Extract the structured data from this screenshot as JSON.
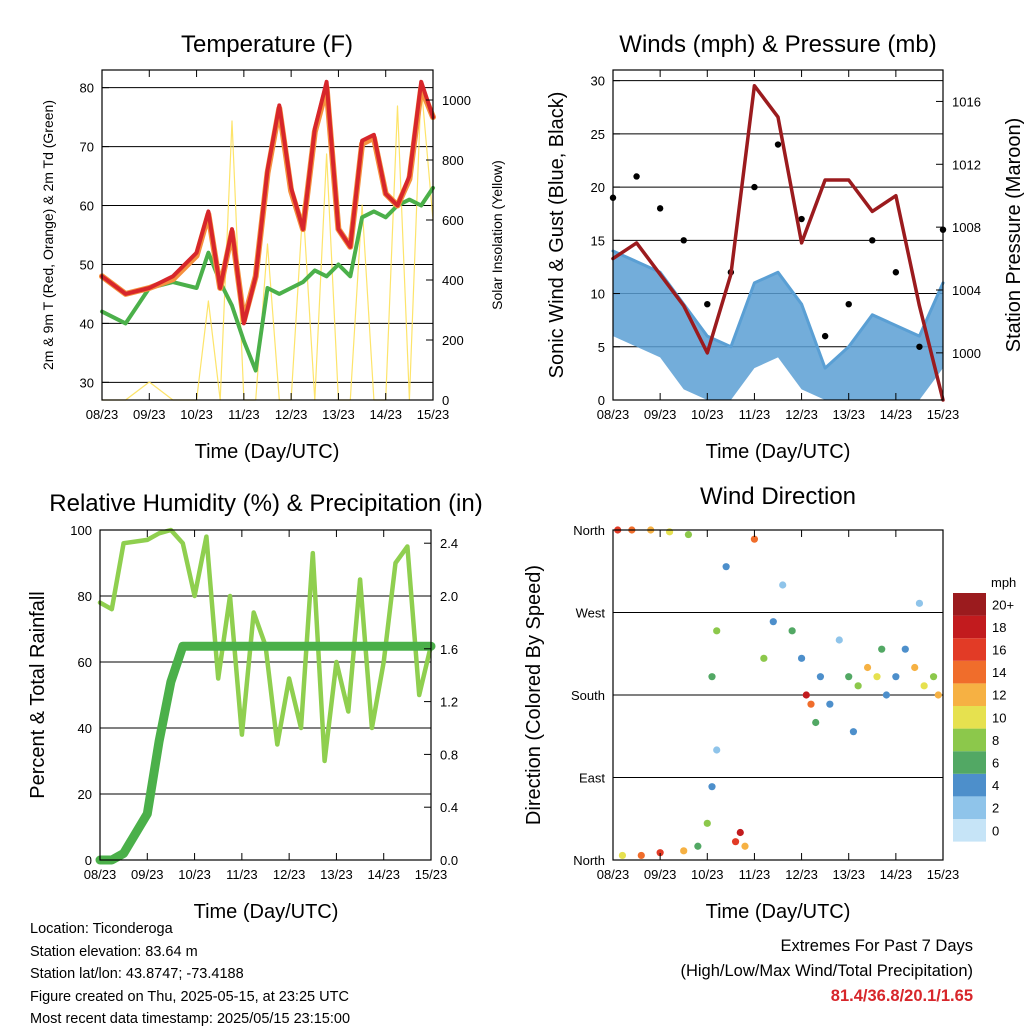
{
  "x_tick_labels": [
    "08/23",
    "09/23",
    "10/23",
    "11/23",
    "12/23",
    "13/23",
    "14/23",
    "15/23"
  ],
  "x_axis_label": "Time (Day/UTC)",
  "colors": {
    "temp_2m": "#d7262b",
    "temp_9m": "#f5913e",
    "dewpoint": "#4bb04a",
    "solar": "#fde15a",
    "wind": "#5a9fd4",
    "gust": "#000000",
    "pressure": "#9b1b1e",
    "rh": "#8fcf4f",
    "precip": "#4bb04a",
    "ext_value": "#d7262b"
  },
  "panels": {
    "temperature": {
      "title": "Temperature (F)",
      "left_label": "2m & 9m T (Red, Orange) & 2m Td (Green)",
      "right_label": "Solar Insolation (Yellow)",
      "left_ticks": [
        "30",
        "40",
        "50",
        "60",
        "70",
        "80"
      ],
      "right_ticks": [
        "0",
        "200",
        "400",
        "600",
        "800",
        "1000"
      ]
    },
    "winds": {
      "title": "Winds (mph) & Pressure (mb)",
      "left_label": "Sonic Wind & Gust (Blue, Black)",
      "right_label": "Station Pressure (Maroon)",
      "left_ticks": [
        "0",
        "5",
        "10",
        "15",
        "20",
        "25",
        "30"
      ],
      "right_ticks": [
        "1000",
        "1004",
        "1008",
        "1012",
        "1016"
      ]
    },
    "humidity": {
      "title": "Relative Humidity (%) & Precipitation (in)",
      "left_label": "Percent & Total Rainfall",
      "left_ticks": [
        "0",
        "20",
        "40",
        "60",
        "80",
        "100"
      ],
      "right_ticks": [
        "0.0",
        "0.4",
        "0.8",
        "1.2",
        "1.6",
        "2.0",
        "2.4"
      ]
    },
    "direction": {
      "title": "Wind Direction",
      "left_label": "Direction (Colored By Speed)",
      "dir_labels": [
        "North",
        "East",
        "South",
        "West",
        "North"
      ],
      "legend_unit": "mph",
      "legend_labels": [
        "0",
        "2",
        "4",
        "6",
        "8",
        "10",
        "12",
        "14",
        "16",
        "18",
        "20+"
      ],
      "legend_colors": [
        "#c6e4f7",
        "#8fc4ea",
        "#4d8fcb",
        "#52a864",
        "#8cc84b",
        "#e6e14f",
        "#f6b143",
        "#f06d2b",
        "#e23b26",
        "#c21b1e",
        "#9b1b1e"
      ]
    }
  },
  "footer": {
    "location": "Location: Ticonderoga",
    "elevation": "Station elevation: 83.64 m",
    "latlon": "Station lat/lon: 43.8747; -73.4188",
    "created": "Figure created on Thu, 2025-05-15, at 23:25 UTC",
    "recent": "Most recent data timestamp: 2025/05/15 23:15:00"
  },
  "extremes": {
    "heading": "Extremes For Past 7 Days",
    "subheading": "(High/Low/Max Wind/Total Precipitation)",
    "values": "81.4/36.8/20.1/1.65"
  },
  "chart_data": [
    {
      "type": "line",
      "title": "Temperature (F)",
      "xlabel": "Time (Day/UTC)",
      "ylabel": "2m & 9m T (Red, Orange) & 2m Td (Green)",
      "y2label": "Solar Insolation (Yellow)",
      "x": [
        8,
        8.5,
        9,
        9.5,
        10,
        10.25,
        10.5,
        10.75,
        11,
        11.25,
        11.5,
        11.75,
        12,
        12.25,
        12.5,
        12.75,
        13,
        13.25,
        13.5,
        13.75,
        14,
        14.25,
        14.5,
        14.75,
        15
      ],
      "ylim": [
        27,
        83
      ],
      "y2lim": [
        0,
        1100
      ],
      "xlim": [
        8,
        15
      ],
      "series": [
        {
          "name": "2m T",
          "axis": "left",
          "values": [
            48,
            45,
            46,
            48,
            52,
            59,
            46,
            56,
            40,
            48,
            66,
            77,
            63,
            56,
            73,
            81,
            56,
            53,
            71,
            72,
            62,
            60,
            65,
            81,
            75
          ]
        },
        {
          "name": "9m T",
          "axis": "left",
          "values": [
            48,
            45,
            46,
            47.5,
            51.5,
            58.5,
            46,
            55.5,
            40.5,
            48,
            65.5,
            76.5,
            62.5,
            56,
            72.5,
            80,
            56,
            53,
            70.5,
            71.5,
            62,
            60,
            64.5,
            80,
            75
          ]
        },
        {
          "name": "2m Td",
          "axis": "left",
          "values": [
            42,
            40,
            46,
            47,
            46,
            52,
            47,
            43,
            37,
            32,
            46,
            45,
            46,
            47,
            49,
            48,
            50,
            48,
            58,
            59,
            58,
            60,
            61,
            60,
            63
          ]
        },
        {
          "name": "Solar Insolation",
          "axis": "right",
          "values": [
            0,
            0,
            60,
            0,
            0,
            330,
            0,
            930,
            0,
            0,
            520,
            0,
            0,
            650,
            0,
            820,
            0,
            0,
            650,
            0,
            0,
            980,
            0,
            1050,
            600
          ]
        }
      ]
    },
    {
      "type": "line",
      "title": "Winds (mph) & Pressure (mb)",
      "xlabel": "Time (Day/UTC)",
      "ylabel": "Sonic Wind & Gust (Blue, Black)",
      "y2label": "Station Pressure (Maroon)",
      "x": [
        8,
        8.5,
        9,
        9.5,
        10,
        10.5,
        11,
        11.5,
        12,
        12.5,
        13,
        13.5,
        14,
        14.5,
        15
      ],
      "ylim": [
        0,
        31
      ],
      "y2lim": [
        997,
        1018
      ],
      "xlim": [
        8,
        15
      ],
      "series": [
        {
          "name": "Sonic Wind",
          "axis": "left",
          "values": [
            14,
            13,
            12,
            9,
            6,
            5,
            11,
            12,
            9,
            3,
            5,
            8,
            7,
            6,
            11
          ]
        },
        {
          "name": "Gust",
          "axis": "left",
          "values": [
            19,
            21,
            18,
            15,
            9,
            12,
            20,
            24,
            17,
            6,
            9,
            15,
            12,
            5,
            16
          ]
        },
        {
          "name": "Station Pressure",
          "axis": "right",
          "values": [
            1006,
            1007,
            1005,
            1003,
            1000,
            1005,
            1017,
            1015,
            1007,
            1011,
            1011,
            1009,
            1010,
            1003,
            997
          ]
        }
      ]
    },
    {
      "type": "line",
      "title": "Relative Humidity (%) & Precipitation (in)",
      "xlabel": "Time (Day/UTC)",
      "ylabel": "Percent & Total Rainfall",
      "x": [
        8,
        8.25,
        8.5,
        9,
        9.25,
        9.5,
        9.75,
        10,
        10.25,
        10.5,
        10.75,
        11,
        11.25,
        11.5,
        11.75,
        12,
        12.25,
        12.5,
        12.75,
        13,
        13.25,
        13.5,
        13.75,
        14,
        14.25,
        14.5,
        14.75,
        15
      ],
      "ylim": [
        0,
        100
      ],
      "y2lim": [
        0,
        2.5
      ],
      "xlim": [
        8,
        15
      ],
      "series": [
        {
          "name": "Relative Humidity",
          "axis": "left",
          "values": [
            78,
            76,
            96,
            97,
            99,
            100,
            96,
            80,
            98,
            55,
            80,
            38,
            75,
            65,
            35,
            55,
            40,
            93,
            30,
            60,
            45,
            85,
            40,
            60,
            90,
            95,
            50,
            65
          ]
        },
        {
          "name": "Total Precipitation",
          "axis": "right",
          "values": [
            0,
            0,
            0.05,
            0.35,
            0.9,
            1.35,
            1.62,
            1.62,
            1.62,
            1.62,
            1.62,
            1.62,
            1.62,
            1.62,
            1.62,
            1.62,
            1.62,
            1.62,
            1.62,
            1.62,
            1.62,
            1.62,
            1.62,
            1.62,
            1.62,
            1.62,
            1.62,
            1.62
          ]
        }
      ]
    },
    {
      "type": "scatter",
      "title": "Wind Direction",
      "xlabel": "Time (Day/UTC)",
      "ylabel": "Direction (Colored By Speed)",
      "ytick_labels": [
        "North",
        "East",
        "South",
        "West",
        "North"
      ],
      "xlim": [
        8,
        15
      ],
      "legend_title": "mph",
      "points": [
        {
          "t": 8.1,
          "dir": 360,
          "spd": 16
        },
        {
          "t": 8.4,
          "dir": 360,
          "spd": 14
        },
        {
          "t": 8.8,
          "dir": 360,
          "spd": 12
        },
        {
          "t": 9.2,
          "dir": 358,
          "spd": 10
        },
        {
          "t": 9.6,
          "dir": 355,
          "spd": 8
        },
        {
          "t": 8.2,
          "dir": 5,
          "spd": 10
        },
        {
          "t": 8.6,
          "dir": 5,
          "spd": 14
        },
        {
          "t": 9.0,
          "dir": 8,
          "spd": 16
        },
        {
          "t": 9.5,
          "dir": 10,
          "spd": 12
        },
        {
          "t": 9.8,
          "dir": 15,
          "spd": 6
        },
        {
          "t": 10.0,
          "dir": 40,
          "spd": 8
        },
        {
          "t": 10.1,
          "dir": 80,
          "spd": 4
        },
        {
          "t": 10.2,
          "dir": 120,
          "spd": 2
        },
        {
          "t": 10.1,
          "dir": 200,
          "spd": 6
        },
        {
          "t": 10.2,
          "dir": 250,
          "spd": 8
        },
        {
          "t": 10.4,
          "dir": 320,
          "spd": 4
        },
        {
          "t": 10.6,
          "dir": 20,
          "spd": 16
        },
        {
          "t": 10.7,
          "dir": 30,
          "spd": 18
        },
        {
          "t": 10.8,
          "dir": 15,
          "spd": 12
        },
        {
          "t": 11.0,
          "dir": 350,
          "spd": 14
        },
        {
          "t": 11.2,
          "dir": 220,
          "spd": 8
        },
        {
          "t": 11.4,
          "dir": 260,
          "spd": 4
        },
        {
          "t": 11.6,
          "dir": 300,
          "spd": 2
        },
        {
          "t": 11.8,
          "dir": 250,
          "spd": 6
        },
        {
          "t": 12.0,
          "dir": 220,
          "spd": 4
        },
        {
          "t": 12.1,
          "dir": 180,
          "spd": 18
        },
        {
          "t": 12.2,
          "dir": 170,
          "spd": 14
        },
        {
          "t": 12.3,
          "dir": 150,
          "spd": 6
        },
        {
          "t": 12.4,
          "dir": 200,
          "spd": 4
        },
        {
          "t": 12.6,
          "dir": 170,
          "spd": 4
        },
        {
          "t": 12.8,
          "dir": 240,
          "spd": 2
        },
        {
          "t": 13.0,
          "dir": 200,
          "spd": 6
        },
        {
          "t": 13.2,
          "dir": 190,
          "spd": 8
        },
        {
          "t": 13.4,
          "dir": 210,
          "spd": 12
        },
        {
          "t": 13.6,
          "dir": 200,
          "spd": 10
        },
        {
          "t": 13.8,
          "dir": 180,
          "spd": 4
        },
        {
          "t": 14.0,
          "dir": 200,
          "spd": 4
        },
        {
          "t": 14.2,
          "dir": 230,
          "spd": 4
        },
        {
          "t": 14.4,
          "dir": 210,
          "spd": 12
        },
        {
          "t": 14.6,
          "dir": 190,
          "spd": 10
        },
        {
          "t": 14.8,
          "dir": 200,
          "spd": 8
        },
        {
          "t": 14.9,
          "dir": 180,
          "spd": 12
        },
        {
          "t": 14.5,
          "dir": 280,
          "spd": 2
        },
        {
          "t": 13.7,
          "dir": 230,
          "spd": 6
        },
        {
          "t": 13.1,
          "dir": 140,
          "spd": 4
        }
      ]
    }
  ]
}
